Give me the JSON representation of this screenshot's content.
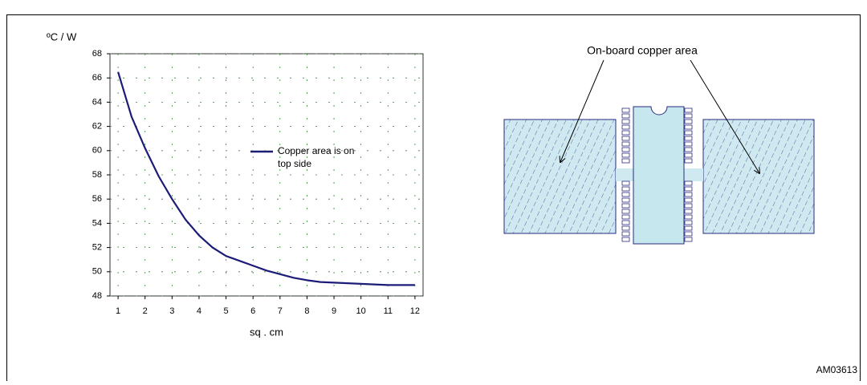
{
  "chart_data": {
    "type": "line",
    "y_label": "ºC / W",
    "x_label": "sq . cm",
    "x": [
      1,
      1.5,
      2,
      2.5,
      3,
      3.5,
      4,
      4.5,
      5,
      5.5,
      6,
      6.5,
      7,
      7.5,
      8,
      8.5,
      9,
      10,
      11,
      12
    ],
    "series": [
      {
        "name": "Copper area is on top side",
        "color": "#1c1c78",
        "values": [
          66.5,
          62.8,
          60.2,
          57.9,
          56.0,
          54.3,
          53.0,
          52.0,
          51.3,
          50.9,
          50.5,
          50.1,
          49.8,
          49.5,
          49.3,
          49.15,
          49.1,
          49.0,
          48.9,
          48.9
        ]
      }
    ],
    "xlim": [
      0.7,
      12.3
    ],
    "xticks": [
      1,
      2,
      3,
      4,
      5,
      6,
      7,
      8,
      9,
      10,
      11,
      12
    ],
    "ylim": [
      48,
      68
    ],
    "yticks": [
      48,
      50,
      52,
      54,
      56,
      58,
      60,
      62,
      64,
      66,
      68
    ],
    "grid": true,
    "grid_color": "#2e8b2e"
  },
  "diagram": {
    "label": "On-board copper area",
    "code": "AM03613"
  }
}
